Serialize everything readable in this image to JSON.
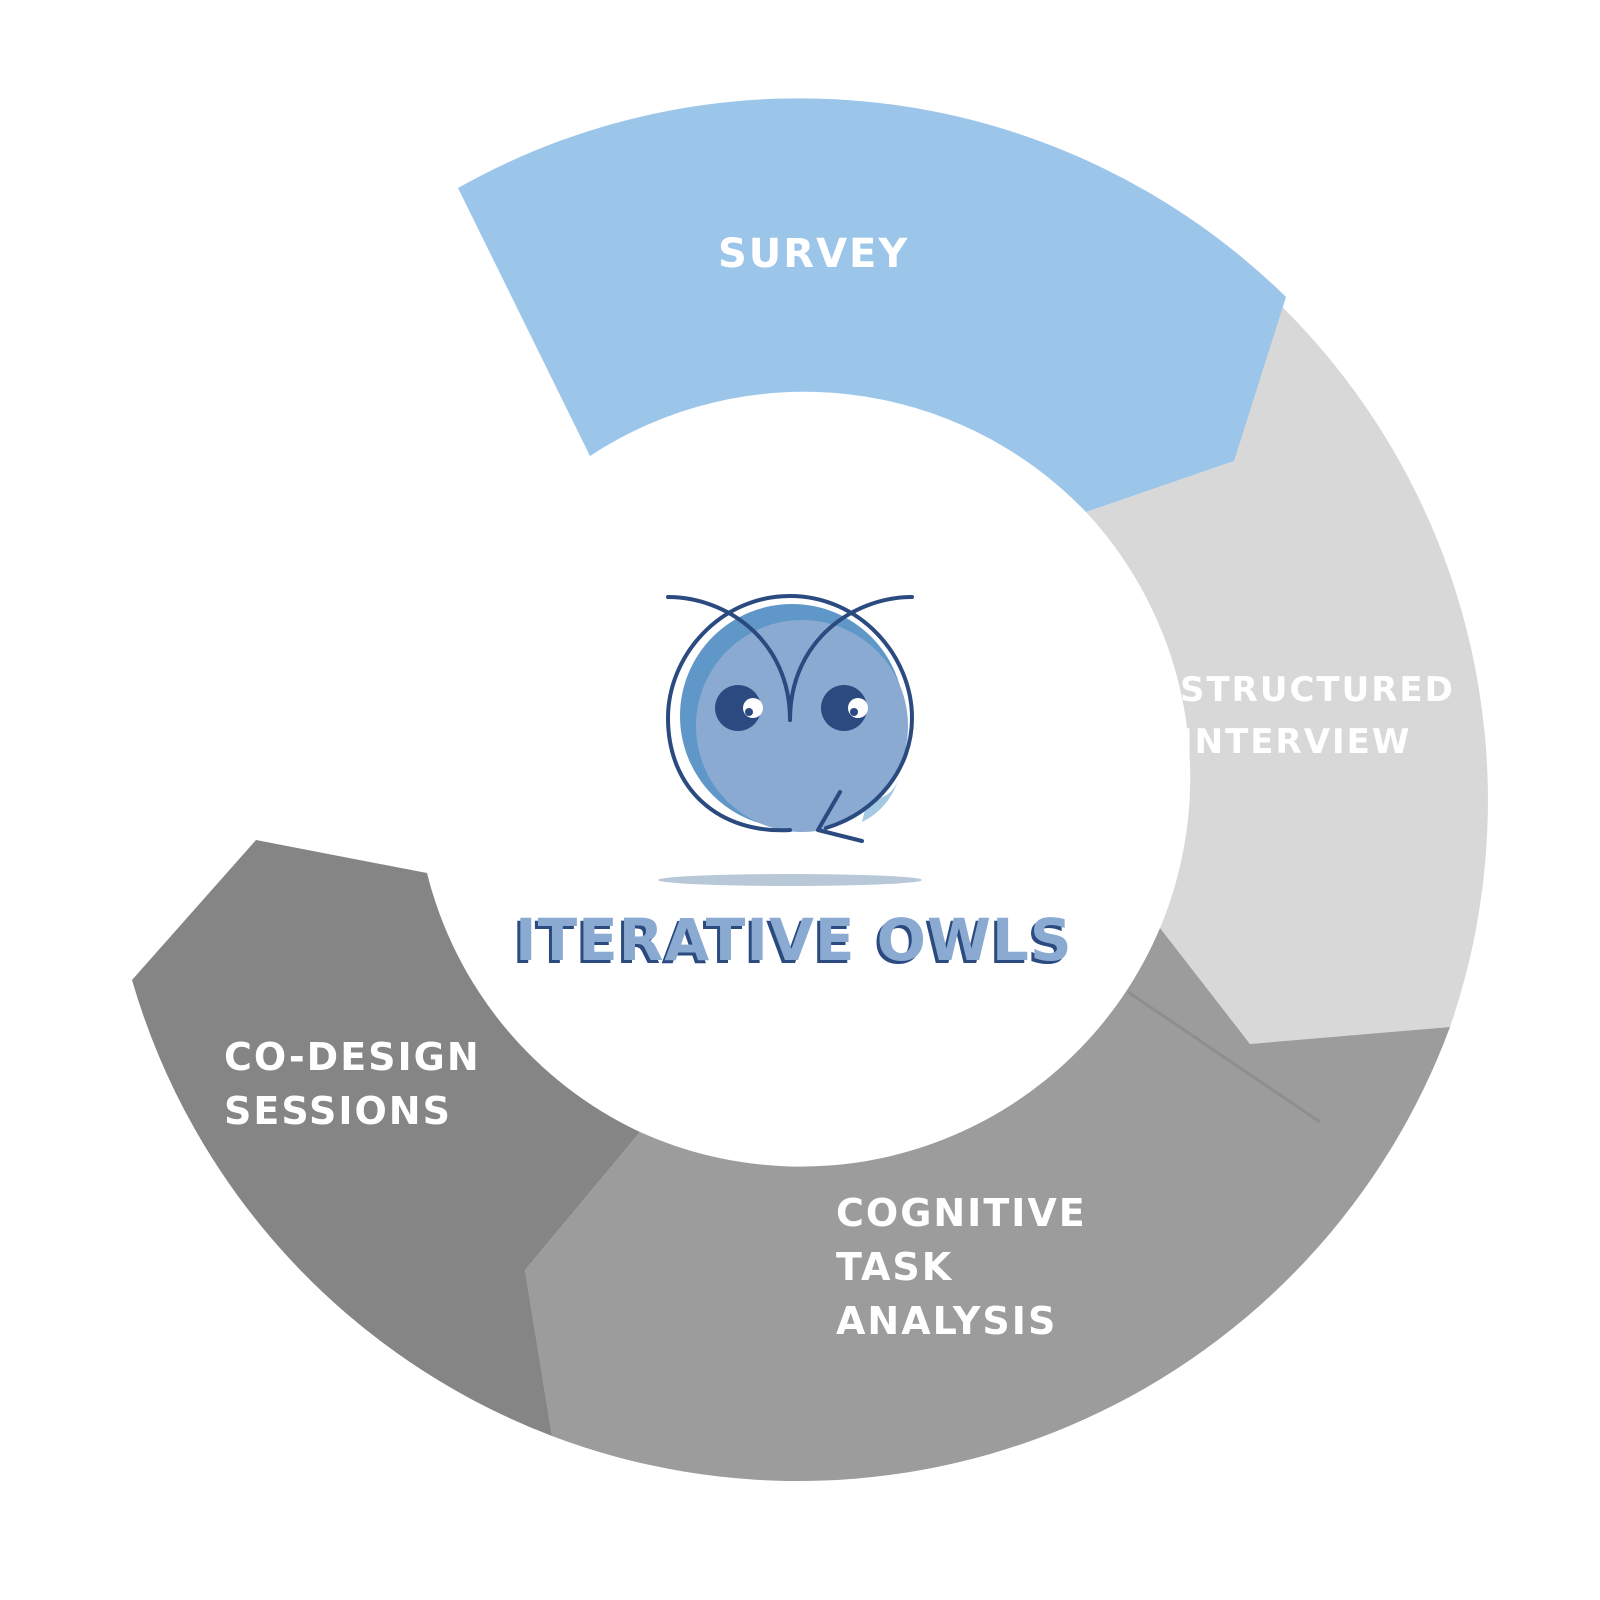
{
  "diagram": {
    "title": "ITERATIVE OWLS",
    "segments": [
      {
        "id": "survey",
        "lines": [
          "SURVEY"
        ],
        "color": "#9cc5ea"
      },
      {
        "id": "structured-interview",
        "lines": [
          "STRUCTURED",
          "INTERVIEW"
        ],
        "color": "#d8d8d8"
      },
      {
        "id": "cognitive-task-analysis",
        "lines": [
          "COGNITIVE",
          "TASK",
          "ANALYSIS"
        ],
        "color": "#9c9c9c"
      },
      {
        "id": "co-design-sessions",
        "lines": [
          "CO-DESIGN",
          "SESSIONS"
        ],
        "color": "#858585"
      }
    ],
    "logo": {
      "icon": "owl-icon",
      "colors": {
        "outline": "#2a4a80",
        "face": "#8aaad2",
        "accent": "#5f98c8",
        "shadow": "#b8c8d8"
      }
    }
  }
}
